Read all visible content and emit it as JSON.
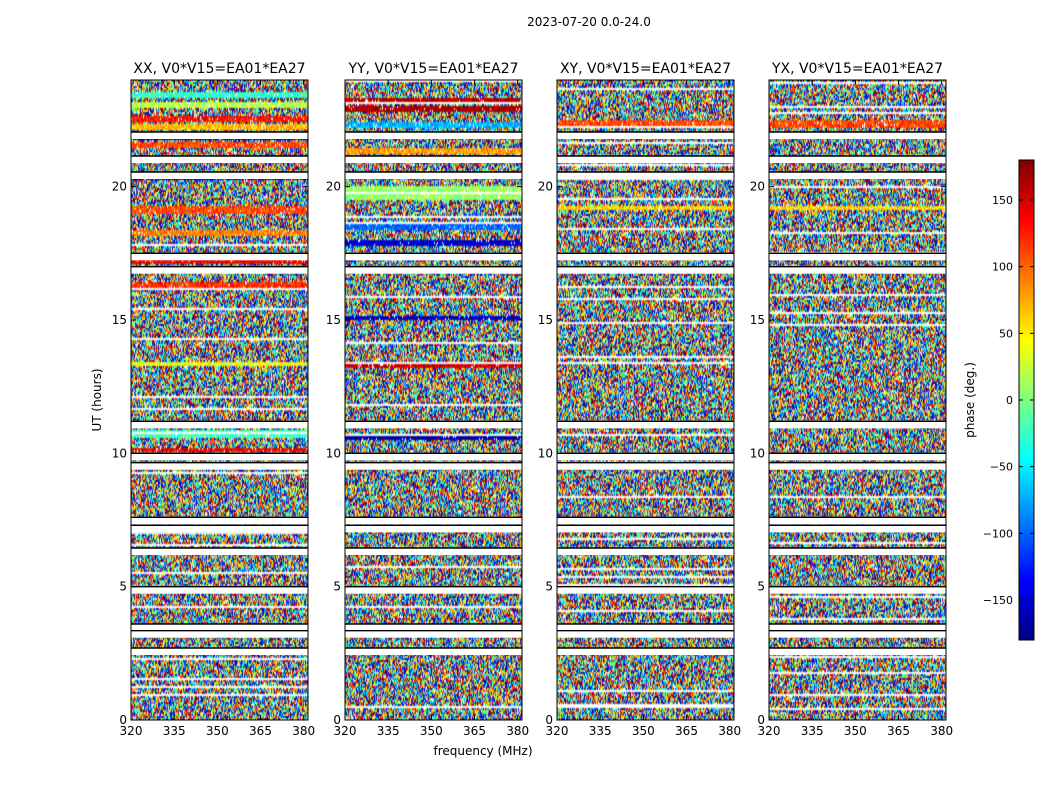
{
  "chart_data": {
    "type": "heatmap",
    "title": "2023-07-20 0.0-24.0",
    "xlabel": "frequency (MHz)",
    "ylabel": "UT (hours)",
    "xlim": [
      320,
      381.5
    ],
    "ylim": [
      0,
      24
    ],
    "xticks": [
      "320",
      "335",
      "350",
      "365",
      "380"
    ],
    "xtick_values": [
      320,
      335,
      350,
      365,
      380
    ],
    "yticks": [
      "0",
      "5",
      "10",
      "15",
      "20"
    ],
    "ytick_values": [
      0,
      5,
      10,
      15,
      20
    ],
    "colorbar": {
      "label": "phase (deg.)",
      "range": [
        -180,
        180
      ],
      "ticks": [
        "−150",
        "−100",
        "−50",
        "0",
        "50",
        "100",
        "150"
      ],
      "tick_values": [
        -150,
        -100,
        -50,
        0,
        50,
        100,
        150
      ],
      "colormap": "jet"
    },
    "panels": [
      {
        "title": "XX, V0*V15=EA01*EA27",
        "profile": "xx"
      },
      {
        "title": "YY, V0*V15=EA01*EA27",
        "profile": "yy"
      },
      {
        "title": "XY, V0*V15=EA01*EA27",
        "profile": "cross"
      },
      {
        "title": "YX, V0*V15=EA01*EA27",
        "profile": "cross"
      }
    ],
    "flagged_ut_hours": [
      22.05,
      21.15,
      20.55,
      17.5,
      17.0,
      11.2,
      10.0,
      9.65,
      7.6,
      7.3,
      6.45,
      5.0,
      3.6,
      3.35,
      2.7
    ],
    "coherent_bands": {
      "xx": [
        {
          "ut": [
            23.35,
            23.55
          ],
          "phase": -30
        },
        {
          "ut": [
            22.95,
            23.15
          ],
          "phase": 20
        },
        {
          "ut": [
            22.45,
            22.65
          ],
          "phase": 130
        },
        {
          "ut": [
            22.15,
            22.35
          ],
          "phase": 70
        },
        {
          "ut": [
            21.75,
            21.95
          ],
          "phase": -150
        },
        {
          "ut": [
            21.45,
            21.7
          ],
          "phase": 110
        },
        {
          "ut": [
            20.25,
            20.45
          ],
          "phase": -140
        },
        {
          "ut": [
            19.0,
            19.3
          ],
          "phase": 110
        },
        {
          "ut": [
            18.15,
            18.4
          ],
          "phase": 90
        },
        {
          "ut": [
            17.1,
            17.3
          ],
          "phase": 140
        },
        {
          "ut": [
            16.1,
            16.4
          ],
          "phase": 120
        },
        {
          "ut": [
            13.25,
            13.4
          ],
          "phase": 40
        },
        {
          "ut": [
            10.6,
            10.85
          ],
          "phase": -20
        },
        {
          "ut": [
            10.08,
            10.2
          ],
          "phase": 140
        }
      ],
      "yy": [
        {
          "ut": [
            23.15,
            23.35
          ],
          "phase": 160
        },
        {
          "ut": [
            22.8,
            23.0
          ],
          "phase": 170
        },
        {
          "ut": [
            22.2,
            22.4
          ],
          "phase": -70
        },
        {
          "ut": [
            21.85,
            22.0
          ],
          "phase": -160
        },
        {
          "ut": [
            21.25,
            21.45
          ],
          "phase": 80
        },
        {
          "ut": [
            19.5,
            20.0
          ],
          "phase": 10
        },
        {
          "ut": [
            18.4,
            18.7
          ],
          "phase": -100
        },
        {
          "ut": [
            17.8,
            18.0
          ],
          "phase": -150
        },
        {
          "ut": [
            15.0,
            15.15
          ],
          "phase": -160
        },
        {
          "ut": [
            13.2,
            13.35
          ],
          "phase": 150
        },
        {
          "ut": [
            10.5,
            10.7
          ],
          "phase": -170
        },
        {
          "ut": [
            2.45,
            2.6
          ],
          "phase": 120
        }
      ],
      "cross": [
        {
          "ut": [
            22.2,
            22.5
          ],
          "phase": 110
        },
        {
          "ut": [
            19.1,
            19.3
          ],
          "phase": 60
        }
      ]
    },
    "text_font_px": {
      "title": 12,
      "panel_title": 14,
      "tick": 12,
      "label": 12,
      "cbar_tick": 11
    }
  }
}
